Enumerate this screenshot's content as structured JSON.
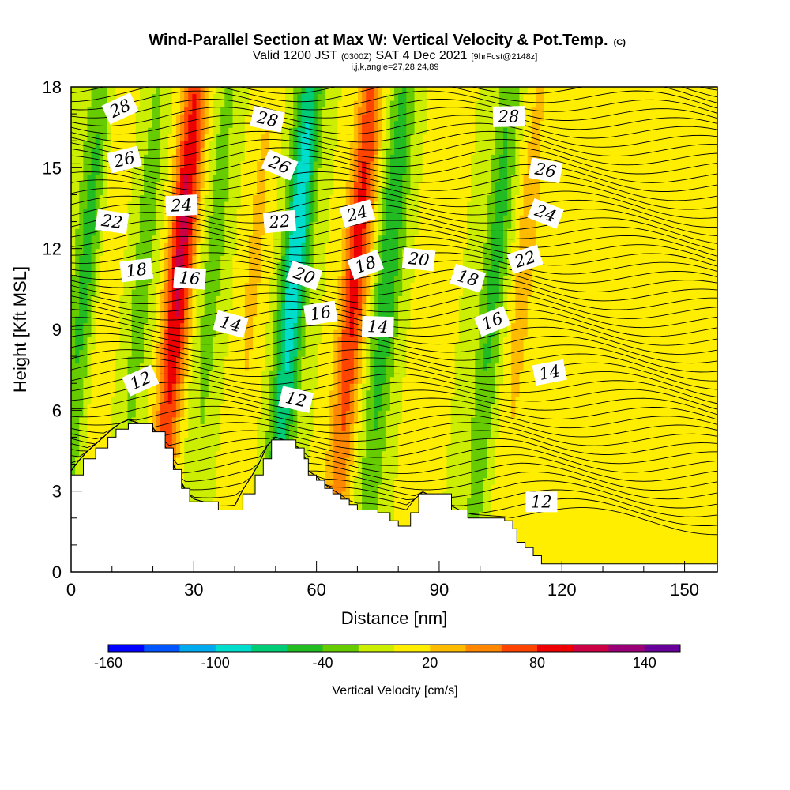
{
  "title": {
    "main": "Wind-Parallel Section at Max W: Vertical Velocity & Pot.Temp.",
    "main_suffix": "(C)",
    "sub_a": "Valid 1200 JST",
    "sub_b": "(0300Z)",
    "sub_c": "SAT 4 Dec 2021",
    "sub_d": "[9hrFcst@2148z]",
    "line3": "i,j,k,angle=27,28,24,89"
  },
  "colors": {
    "bins": [
      "#0000ff",
      "#0055ff",
      "#00aaee",
      "#00ddcc",
      "#00cc77",
      "#22bb22",
      "#66cc00",
      "#ccee00",
      "#ffee00",
      "#ffbb00",
      "#ff8800",
      "#ff4400",
      "#ee0000",
      "#cc0044",
      "#990077",
      "#660099"
    ]
  },
  "chart_data": {
    "type": "heatmap",
    "xlabel": "Distance [nm]",
    "ylabel": "Height [Kft MSL]",
    "xlim": [
      0,
      158
    ],
    "ylim": [
      0,
      18
    ],
    "xticks": [
      "0",
      "30",
      "60",
      "90",
      "120",
      "150"
    ],
    "yticks": [
      "0",
      "3",
      "6",
      "9",
      "12",
      "15",
      "18"
    ],
    "colorbar": {
      "label": "Vertical Velocity [cm/s]",
      "tick_labels": [
        "-160",
        "-100",
        "-40",
        "20",
        "80",
        "140"
      ],
      "levels": [
        -160,
        -140,
        -120,
        -100,
        -80,
        -60,
        -40,
        -20,
        0,
        20,
        40,
        60,
        80,
        100,
        120,
        140,
        160
      ]
    },
    "w_field": {
      "description_units": "cm/s",
      "features": [
        {
          "x": 3,
          "w": -50
        },
        {
          "x": 8,
          "w": 20
        },
        {
          "x": 17,
          "w": -30
        },
        {
          "x": 26,
          "w": 110
        },
        {
          "x": 34,
          "w": -30
        },
        {
          "x": 44,
          "w": 25
        },
        {
          "x": 54,
          "w": -100
        },
        {
          "x": 69,
          "w": 90
        },
        {
          "x": 77,
          "w": -60
        },
        {
          "x": 88,
          "w": 20
        },
        {
          "x": 103,
          "w": -50
        },
        {
          "x": 110,
          "w": 30
        },
        {
          "x": 140,
          "w": 5
        }
      ]
    },
    "theta_contour_labels": [
      {
        "x": 12,
        "z": 17.2,
        "label": "28"
      },
      {
        "x": 48,
        "z": 16.8,
        "label": "28"
      },
      {
        "x": 107,
        "z": 16.9,
        "label": "28"
      },
      {
        "x": 13,
        "z": 15.3,
        "label": "26"
      },
      {
        "x": 51,
        "z": 15.1,
        "label": "26"
      },
      {
        "x": 116,
        "z": 14.9,
        "label": "26"
      },
      {
        "x": 27,
        "z": 13.6,
        "label": "24"
      },
      {
        "x": 70,
        "z": 13.3,
        "label": "24"
      },
      {
        "x": 116,
        "z": 13.3,
        "label": "24"
      },
      {
        "x": 10,
        "z": 13.0,
        "label": "22"
      },
      {
        "x": 51,
        "z": 13.0,
        "label": "22"
      },
      {
        "x": 111,
        "z": 11.6,
        "label": "22"
      },
      {
        "x": 57,
        "z": 11.0,
        "label": "20"
      },
      {
        "x": 85,
        "z": 11.6,
        "label": "20"
      },
      {
        "x": 16,
        "z": 11.2,
        "label": "18"
      },
      {
        "x": 72,
        "z": 11.4,
        "label": "18"
      },
      {
        "x": 97,
        "z": 10.9,
        "label": "18"
      },
      {
        "x": 29,
        "z": 10.9,
        "label": "16"
      },
      {
        "x": 61,
        "z": 9.6,
        "label": "16"
      },
      {
        "x": 103,
        "z": 9.3,
        "label": "16"
      },
      {
        "x": 39,
        "z": 9.2,
        "label": "14"
      },
      {
        "x": 75,
        "z": 9.1,
        "label": "14"
      },
      {
        "x": 117,
        "z": 7.4,
        "label": "14"
      },
      {
        "x": 17,
        "z": 7.1,
        "label": "12"
      },
      {
        "x": 55,
        "z": 6.4,
        "label": "12"
      },
      {
        "x": 115,
        "z": 2.6,
        "label": "12"
      }
    ],
    "terrain": [
      [
        0,
        3.6
      ],
      [
        3,
        4.2
      ],
      [
        6,
        4.6
      ],
      [
        9,
        5.0
      ],
      [
        11,
        5.3
      ],
      [
        14,
        5.5
      ],
      [
        20,
        5.2
      ],
      [
        23,
        4.6
      ],
      [
        25,
        3.8
      ],
      [
        27,
        3.1
      ],
      [
        29,
        2.6
      ],
      [
        36,
        2.3
      ],
      [
        40,
        2.3
      ],
      [
        42,
        2.9
      ],
      [
        45,
        3.6
      ],
      [
        47,
        4.2
      ],
      [
        49,
        4.9
      ],
      [
        55,
        4.6
      ],
      [
        57,
        4.2
      ],
      [
        58,
        3.6
      ],
      [
        60,
        3.4
      ],
      [
        62,
        3.1
      ],
      [
        64,
        2.9
      ],
      [
        66,
        2.7
      ],
      [
        68,
        2.5
      ],
      [
        70,
        2.3
      ],
      [
        75,
        2.2
      ],
      [
        78,
        1.9
      ],
      [
        80,
        1.7
      ],
      [
        83,
        2.2
      ],
      [
        85,
        2.9
      ],
      [
        93,
        2.3
      ],
      [
        97,
        2.0
      ],
      [
        106,
        1.9
      ],
      [
        108,
        1.6
      ],
      [
        109,
        1.1
      ],
      [
        111,
        0.9
      ],
      [
        113,
        0.6
      ],
      [
        115,
        0.3
      ],
      [
        158,
        0.3
      ]
    ]
  }
}
